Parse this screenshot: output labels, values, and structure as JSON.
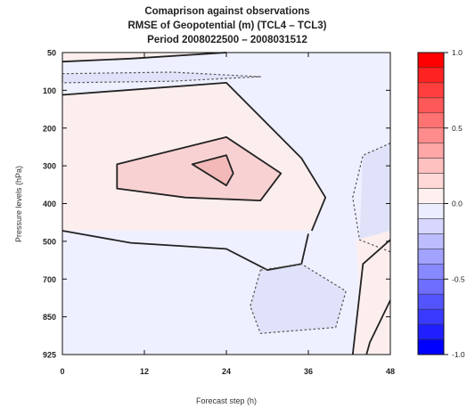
{
  "chart_data": {
    "type": "contour",
    "title": [
      "Comaprison against observations",
      "RMSE of Geopotential (m) (TCL4 – TCL3)",
      "Period 2008022500 – 2008031512"
    ],
    "xlabel": "Forecast step (h)",
    "ylabel": "Pressure levels (hPa)",
    "x_ticks": [
      0,
      12,
      24,
      36,
      48
    ],
    "y_ticks": [
      50,
      100,
      200,
      300,
      400,
      500,
      700,
      850,
      925
    ],
    "xlim": [
      0,
      48
    ],
    "ylim": [
      50,
      925
    ],
    "y_axis": "categorical pressure levels, increasing downward",
    "grid": false,
    "colorbar": {
      "position": "right",
      "min": -1.0,
      "max": 1.0,
      "tick_labels": [
        "1.0",
        "0.5",
        "0.0",
        "-0.5",
        "-1.0"
      ],
      "tick_values": [
        1.0,
        0.5,
        0.0,
        -0.5,
        -1.0
      ],
      "levels": 20,
      "colors": [
        "#0000ff",
        "#1f1fff",
        "#3a3aff",
        "#5454ff",
        "#6e6eff",
        "#8888ff",
        "#a2a2ff",
        "#bcbcff",
        "#d6d6ff",
        "#ecedff",
        "#fff0f0",
        "#ffd8d8",
        "#ffc0c0",
        "#ffa6a6",
        "#ff8c8c",
        "#ff7272",
        "#ff5858",
        "#ff3e3e",
        "#ff2222",
        "#ff0000"
      ]
    },
    "background_level_color": "#eef0ff",
    "regions": [
      {
        "level": 0.05,
        "color": "#fdeeee",
        "points": [
          [
            0,
            0.14
          ],
          [
            24,
            0.1
          ],
          [
            35,
            0.35
          ],
          [
            38.5,
            0.48
          ],
          [
            36.5,
            0.59
          ],
          [
            0,
            0.59
          ]
        ]
      },
      {
        "level": 0.15,
        "color": "#f8d2d2",
        "points": [
          [
            8,
            0.37
          ],
          [
            24,
            0.28
          ],
          [
            32,
            0.4
          ],
          [
            29,
            0.49
          ],
          [
            18,
            0.48
          ],
          [
            8,
            0.45
          ]
        ]
      },
      {
        "level": 0.25,
        "color": "#f3b8b8",
        "points": [
          [
            19,
            0.37
          ],
          [
            24,
            0.34
          ],
          [
            25,
            0.4
          ],
          [
            24,
            0.44
          ]
        ]
      },
      {
        "level": -0.05,
        "color": "#dfe2f8",
        "points": [
          [
            0,
            0.07
          ],
          [
            16,
            0.065
          ],
          [
            29,
            0.08
          ],
          [
            16,
            0.095
          ],
          [
            0,
            0.1
          ]
        ]
      },
      {
        "level": -0.05,
        "color": "#dfe2f8",
        "points": [
          [
            44,
            0.34
          ],
          [
            48,
            0.3
          ],
          [
            48,
            0.66
          ],
          [
            43.5,
            0.62
          ]
        ]
      },
      {
        "level": -0.05,
        "color": "#dfe2f8",
        "points": [
          [
            29,
            0.72
          ],
          [
            35,
            0.7
          ],
          [
            41.5,
            0.79
          ],
          [
            40,
            0.91
          ],
          [
            29,
            0.93
          ],
          [
            27.5,
            0.84
          ]
        ]
      },
      {
        "level": 0.05,
        "color": "#fdeeee",
        "points": [
          [
            43,
            0.62
          ],
          [
            48,
            0.59
          ],
          [
            48,
            1.0
          ],
          [
            42.5,
            1.0
          ],
          [
            43.5,
            0.8
          ]
        ]
      },
      {
        "level": 0.05,
        "color": "#fdeeee",
        "points": [
          [
            0,
            0.0
          ],
          [
            24,
            0.0
          ],
          [
            10,
            0.02
          ],
          [
            0,
            0.03
          ]
        ]
      }
    ],
    "contours": [
      {
        "style": "solid",
        "closed": false,
        "points": [
          [
            0,
            0.14
          ],
          [
            24,
            0.1
          ],
          [
            35,
            0.35
          ],
          [
            38.5,
            0.48
          ],
          [
            36.5,
            0.59
          ]
        ]
      },
      {
        "style": "solid",
        "closed": false,
        "points": [
          [
            0,
            0.59
          ],
          [
            10,
            0.63
          ],
          [
            24,
            0.65
          ],
          [
            30,
            0.72
          ],
          [
            35,
            0.7
          ],
          [
            36,
            0.6
          ]
        ]
      },
      {
        "style": "solid",
        "closed": true,
        "points": [
          [
            8,
            0.37
          ],
          [
            24,
            0.28
          ],
          [
            32,
            0.4
          ],
          [
            29,
            0.49
          ],
          [
            18,
            0.48
          ],
          [
            8,
            0.45
          ]
        ]
      },
      {
        "style": "solid",
        "closed": true,
        "points": [
          [
            19,
            0.37
          ],
          [
            24,
            0.34
          ],
          [
            25,
            0.4
          ],
          [
            24,
            0.44
          ]
        ]
      },
      {
        "style": "solid",
        "closed": false,
        "points": [
          [
            0,
            0.03
          ],
          [
            10,
            0.02
          ],
          [
            24,
            0.0
          ]
        ]
      },
      {
        "style": "solid",
        "closed": false,
        "points": [
          [
            48,
            0.62
          ],
          [
            44,
            0.7
          ],
          [
            43.5,
            0.8
          ],
          [
            42.5,
            1.0
          ]
        ]
      },
      {
        "style": "solid",
        "closed": false,
        "points": [
          [
            48,
            0.82
          ],
          [
            45,
            0.96
          ],
          [
            44.5,
            1.0
          ]
        ]
      },
      {
        "style": "dotted",
        "closed": true,
        "points": [
          [
            0,
            0.07
          ],
          [
            16,
            0.065
          ],
          [
            29,
            0.08
          ],
          [
            16,
            0.095
          ],
          [
            0,
            0.1
          ]
        ]
      },
      {
        "style": "dotted",
        "closed": false,
        "points": [
          [
            48,
            0.3
          ],
          [
            44,
            0.34
          ],
          [
            42.5,
            0.48
          ],
          [
            43.5,
            0.62
          ],
          [
            48,
            0.66
          ]
        ]
      },
      {
        "style": "dotted",
        "closed": false,
        "points": [
          [
            29,
            0.72
          ],
          [
            35,
            0.7
          ],
          [
            41.5,
            0.79
          ],
          [
            40,
            0.91
          ],
          [
            29,
            0.93
          ],
          [
            27.5,
            0.84
          ],
          [
            29,
            0.72
          ]
        ]
      }
    ]
  }
}
